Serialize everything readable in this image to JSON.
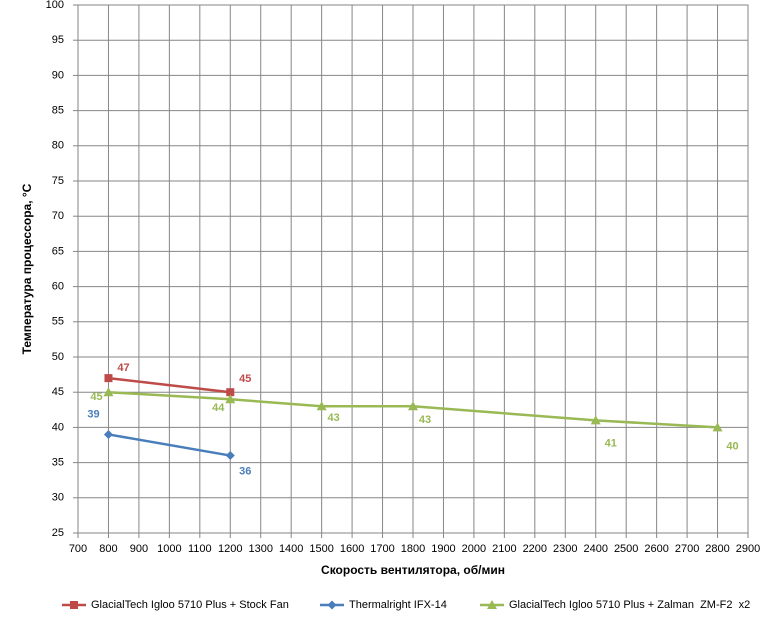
{
  "chart_data": {
    "type": "line",
    "xlabel": "Скорость вентилятора, об/мин",
    "ylabel": "Температура процессора, °C",
    "xlim": [
      700,
      2900
    ],
    "xticks": [
      700,
      800,
      900,
      1000,
      1100,
      1200,
      1300,
      1400,
      1500,
      1600,
      1700,
      1800,
      1900,
      2000,
      2100,
      2200,
      2300,
      2400,
      2500,
      2600,
      2700,
      2800,
      2900
    ],
    "ylim": [
      25,
      100
    ],
    "yticks": [
      25,
      30,
      35,
      40,
      45,
      50,
      55,
      60,
      65,
      70,
      75,
      80,
      85,
      90,
      95,
      100
    ],
    "grid": true,
    "legend": "bottom",
    "series": [
      {
        "name": "GlacialTech Igloo 5710 Plus + Stock Fan",
        "color": "#be4b48",
        "marker": "square",
        "x": [
          800,
          1200
        ],
        "values": [
          47,
          45
        ]
      },
      {
        "name": "Thermalright IFX-14",
        "color": "#4a7ebb",
        "marker": "diamond",
        "x": [
          800,
          1200
        ],
        "values": [
          39,
          36
        ]
      },
      {
        "name": "GlacialTech Igloo 5710 Plus + Zalman  ZM-F2  x2",
        "color": "#98b954",
        "marker": "triangle",
        "x": [
          800,
          1200,
          1500,
          1800,
          2400,
          2800
        ],
        "values": [
          45,
          44,
          43,
          43,
          41,
          40
        ]
      }
    ]
  }
}
